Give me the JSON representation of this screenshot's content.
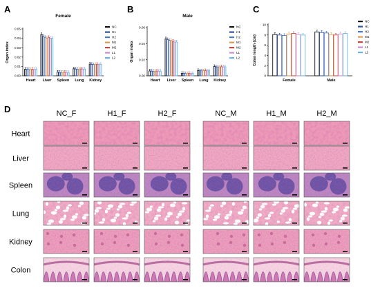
{
  "colors": {
    "series": [
      "#111111",
      "#2f4f9e",
      "#4a78c5",
      "#e09a4c",
      "#c4473f",
      "#c98fd0",
      "#6bb3e0"
    ],
    "tissue_light": "#f3b8cc",
    "tissue_mid": "#e486a8",
    "tissue_dark": "#b04f86",
    "spleen_dark": "#5d4aa0"
  },
  "panels": {
    "A": "A",
    "B": "B",
    "C": "C",
    "D": "D"
  },
  "chart_data": [
    {
      "type": "bar",
      "title": "Female",
      "ylabel": "Organ index",
      "ylim": [
        0,
        0.05
      ],
      "yticks": [
        "0.00",
        "0.01",
        "0.02",
        "0.03",
        "0.04",
        "0.05"
      ],
      "categories": [
        "Heart",
        "Liver",
        "Spleen",
        "Lung",
        "Kidney"
      ],
      "legend_position": "top-right",
      "series": [
        {
          "name": "NC",
          "values": [
            0.007,
            0.044,
            0.004,
            0.0075,
            0.0125
          ]
        },
        {
          "name": "H1",
          "values": [
            0.0068,
            0.042,
            0.0038,
            0.0072,
            0.0122
          ]
        },
        {
          "name": "H2",
          "values": [
            0.0066,
            0.041,
            0.0036,
            0.007,
            0.012
          ]
        },
        {
          "name": "M1",
          "values": [
            0.0068,
            0.04,
            0.0037,
            0.0072,
            0.0121
          ]
        },
        {
          "name": "M2",
          "values": [
            0.007,
            0.041,
            0.0038,
            0.0073,
            0.0123
          ]
        },
        {
          "name": "L1",
          "values": [
            0.0067,
            0.04,
            0.0036,
            0.0071,
            0.012
          ]
        },
        {
          "name": "L2",
          "values": [
            0.0069,
            0.04,
            0.0037,
            0.0072,
            0.0122
          ]
        }
      ]
    },
    {
      "type": "bar",
      "title": "Male",
      "ylabel": "Organ index",
      "ylim": [
        0,
        0.06
      ],
      "yticks": [
        "0.00",
        "0.02",
        "0.04",
        "0.06"
      ],
      "categories": [
        "Heart",
        "Liver",
        "Spleen",
        "Lung",
        "Kidney"
      ],
      "legend_position": "top-right",
      "series": [
        {
          "name": "NC",
          "values": [
            0.006,
            0.046,
            0.003,
            0.0065,
            0.0115
          ]
        },
        {
          "name": "H1",
          "values": [
            0.0058,
            0.045,
            0.0029,
            0.0063,
            0.0112
          ]
        },
        {
          "name": "H2",
          "values": [
            0.0057,
            0.044,
            0.0028,
            0.0062,
            0.011
          ]
        },
        {
          "name": "M1",
          "values": [
            0.0058,
            0.044,
            0.0029,
            0.0063,
            0.0111
          ]
        },
        {
          "name": "M2",
          "values": [
            0.0059,
            0.043,
            0.003,
            0.0064,
            0.0113
          ]
        },
        {
          "name": "L1",
          "values": [
            0.0057,
            0.042,
            0.0028,
            0.0062,
            0.011
          ]
        },
        {
          "name": "L2",
          "values": [
            0.0058,
            0.042,
            0.0029,
            0.0063,
            0.0112
          ]
        }
      ]
    },
    {
      "type": "bar",
      "title": "",
      "ylabel": "Colon length (cm)",
      "ylim": [
        0,
        10
      ],
      "yticks": [
        "0",
        "2",
        "4",
        "6",
        "8",
        "10"
      ],
      "categories": [
        "Female",
        "Male"
      ],
      "legend_position": "top-right",
      "series": [
        {
          "name": "NC",
          "values": [
            8.1,
            8.6
          ]
        },
        {
          "name": "H1",
          "values": [
            8.0,
            8.5
          ]
        },
        {
          "name": "H2",
          "values": [
            7.9,
            8.4
          ]
        },
        {
          "name": "M1",
          "values": [
            8.2,
            8.1
          ]
        },
        {
          "name": "M2",
          "values": [
            8.3,
            8.0
          ]
        },
        {
          "name": "L1",
          "values": [
            8.1,
            8.2
          ]
        },
        {
          "name": "L2",
          "values": [
            8.0,
            8.3
          ]
        }
      ]
    }
  ],
  "histology": {
    "columns": [
      "NC_F",
      "H1_F",
      "H2_F",
      "NC_M",
      "H1_M",
      "H2_M"
    ],
    "rows": [
      "Heart",
      "Liver",
      "Spleen",
      "Lung",
      "Kidney",
      "Colon"
    ]
  }
}
